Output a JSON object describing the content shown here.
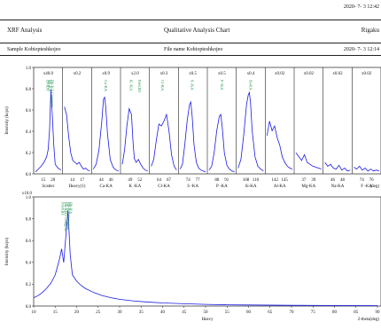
{
  "header": {
    "date_top": "2020- 7- 3 12:42",
    "left_title": "XRF Analysis",
    "center_title": "Qualitative Analysis Chart",
    "right_title": "Rigaku",
    "sample": "Sample Kobiopteshkojeo",
    "file": "File name Kobiopteshkojeo",
    "date_row": "2020- 7- 3 12:14"
  },
  "chart_data": [
    {
      "type": "line",
      "ylabel": "Intensity (kcps)",
      "ylim": [
        0,
        1.0
      ],
      "yticks": [
        "0.0",
        "0.2",
        "0.4",
        "0.6",
        "0.8",
        "1.0"
      ],
      "color": "#1a1ae6",
      "segments": [
        {
          "scale": "x40.0",
          "label": "Scatter",
          "ticks": [
            "15",
            "20"
          ],
          "xrange": [
            13,
            22
          ],
          "x": [
            13,
            14,
            15,
            16,
            17,
            17.5,
            18,
            18.5,
            19,
            19.5,
            20,
            21,
            22
          ],
          "y": [
            0.02,
            0.05,
            0.08,
            0.12,
            0.18,
            0.25,
            0.45,
            0.88,
            0.6,
            0.3,
            0.1,
            0.06,
            0.04
          ]
        },
        {
          "scale": "x0.2",
          "label": "Heavy(1)",
          "ticks": [
            "14",
            "17"
          ],
          "xrange": [
            12,
            18
          ],
          "x": [
            12,
            12.5,
            13,
            13.5,
            14,
            14.5,
            15,
            15.5,
            16,
            16.5,
            17,
            17.5,
            18
          ],
          "y": [
            0.7,
            0.62,
            0.4,
            0.22,
            0.14,
            0.12,
            0.1,
            0.12,
            0.08,
            0.05,
            0.06,
            0.04,
            0.03
          ]
        },
        {
          "scale": "x0.9",
          "label": "Ca-KA",
          "ticks": [
            "44",
            "46"
          ],
          "xrange": [
            43,
            47.5
          ],
          "x": [
            43,
            43.5,
            44,
            44.5,
            44.8,
            45,
            45.2,
            45.5,
            46,
            46.5,
            47,
            47.5
          ],
          "y": [
            0.05,
            0.1,
            0.25,
            0.55,
            0.78,
            0.8,
            0.7,
            0.42,
            0.15,
            0.07,
            0.04,
            0.03
          ]
        },
        {
          "scale": "x2.0",
          "label": "K -KA",
          "ticks": [
            "49",
            "52"
          ],
          "xrange": [
            48,
            53.5
          ],
          "x": [
            48,
            48.5,
            49,
            49.5,
            50,
            50.3,
            50.6,
            51,
            51.5,
            52,
            52.5,
            53,
            53.5
          ],
          "y": [
            0.1,
            0.25,
            0.5,
            0.68,
            0.62,
            0.35,
            0.16,
            0.12,
            0.15,
            0.1,
            0.06,
            0.04,
            0.03
          ]
        },
        {
          "scale": "x0.3",
          "label": "Cl-KA",
          "ticks": [
            "64",
            "67"
          ],
          "xrange": [
            63,
            68
          ],
          "x": [
            63,
            63.5,
            64,
            64.5,
            65,
            65.5,
            66,
            66.5,
            67,
            67.5,
            68
          ],
          "y": [
            0.08,
            0.15,
            0.35,
            0.52,
            0.5,
            0.55,
            0.62,
            0.45,
            0.2,
            0.08,
            0.04
          ]
        },
        {
          "scale": "x0.5",
          "label": "S -KA",
          "ticks": [
            "74",
            "77"
          ],
          "xrange": [
            73,
            78.5
          ],
          "x": [
            73,
            73.5,
            74,
            74.5,
            75,
            75.3,
            75.6,
            76,
            76.5,
            77,
            77.5,
            78,
            78.5
          ],
          "y": [
            0.05,
            0.1,
            0.3,
            0.55,
            0.72,
            0.75,
            0.6,
            0.3,
            0.12,
            0.06,
            0.04,
            0.03,
            0.02
          ]
        },
        {
          "scale": "x0.5",
          "label": "P -KA",
          "ticks": [
            "88",
            "91"
          ],
          "xrange": [
            87,
            92
          ],
          "x": [
            87,
            87.5,
            88,
            88.5,
            89,
            89.3,
            89.6,
            90,
            90.5,
            91,
            91.5,
            92
          ],
          "y": [
            0.04,
            0.08,
            0.22,
            0.45,
            0.6,
            0.62,
            0.48,
            0.22,
            0.09,
            0.05,
            0.03,
            0.02
          ]
        },
        {
          "scale": "x0.4",
          "label": "Si-KA",
          "ticks": [
            "108",
            "110"
          ],
          "xrange": [
            107,
            111.5
          ],
          "x": [
            107,
            107.5,
            108,
            108.5,
            108.8,
            109,
            109.2,
            109.5,
            110,
            110.5,
            111,
            111.5
          ],
          "y": [
            0.06,
            0.15,
            0.4,
            0.72,
            0.82,
            0.85,
            0.75,
            0.45,
            0.18,
            0.08,
            0.05,
            0.03
          ]
        },
        {
          "scale": "x0.02",
          "label": "Al-KA",
          "ticks": [
            "142",
            "145"
          ],
          "xrange": [
            141,
            146
          ],
          "x": [
            141,
            141.5,
            142,
            142.5,
            143,
            143.5,
            144,
            144.5,
            145,
            145.5,
            146
          ],
          "y": [
            0.4,
            0.55,
            0.45,
            0.5,
            0.38,
            0.3,
            0.18,
            0.12,
            0.08,
            0.06,
            0.05
          ]
        },
        {
          "scale": "x0.02",
          "label": "Mg-KA",
          "ticks": [
            "37",
            "39"
          ],
          "xrange": [
            36,
            40.5
          ],
          "x": [
            36,
            36.5,
            37,
            37.5,
            38,
            38.5,
            39,
            39.5,
            40,
            40.5
          ],
          "y": [
            0.22,
            0.18,
            0.14,
            0.2,
            0.12,
            0.1,
            0.08,
            0.07,
            0.06,
            0.05
          ]
        },
        {
          "scale": "x0.02",
          "label": "Na-KA",
          "ticks": [
            "46",
            "48"
          ],
          "xrange": [
            45,
            49.5
          ],
          "x": [
            45,
            45.5,
            46,
            46.5,
            47,
            47.5,
            48,
            48.5,
            49,
            49.5
          ],
          "y": [
            0.12,
            0.08,
            0.1,
            0.06,
            0.05,
            0.09,
            0.04,
            0.06,
            0.03,
            0.04
          ]
        },
        {
          "scale": "x0.02",
          "label": "F -KA",
          "ticks": [
            "74",
            "76"
          ],
          "xrange": [
            73,
            77.5
          ],
          "x": [
            73,
            73.5,
            74,
            74.5,
            75,
            75.5,
            76,
            76.5,
            77,
            77.5
          ],
          "y": [
            0.07,
            0.05,
            0.08,
            0.04,
            0.06,
            0.03,
            0.05,
            0.03,
            0.04,
            0.03
          ]
        }
      ],
      "x_unit": "(deg)",
      "annotations": [
        {
          "seg": 0,
          "x": 18.5,
          "text": "Rh-KA Compton"
        },
        {
          "seg": 0,
          "x": 17.6,
          "text": "Rh-KA"
        },
        {
          "seg": 0,
          "x": 17.0,
          "text": "Zr-KA"
        },
        {
          "seg": 2,
          "x": 45.0,
          "text": "Ca-KA"
        },
        {
          "seg": 3,
          "x": 49.6,
          "text": "K -KA"
        },
        {
          "seg": 3,
          "x": 51.5,
          "text": "Pd-LB1"
        },
        {
          "seg": 4,
          "x": 65.0,
          "text": "Cl-KA"
        },
        {
          "seg": 5,
          "x": 75.3,
          "text": "S -KA"
        },
        {
          "seg": 6,
          "x": 89.3,
          "text": "P -KA"
        },
        {
          "seg": 7,
          "x": 109.0,
          "text": "Si-KA"
        }
      ]
    },
    {
      "type": "line",
      "scale": "x10.0",
      "ylabel": "Intensity (kcps)",
      "xlabel": "Heavy",
      "x_unit": "2-theta(deg)",
      "xlim": [
        10,
        90
      ],
      "ylim": [
        0,
        1.0
      ],
      "xticks": [
        "10",
        "15",
        "20",
        "25",
        "30",
        "35",
        "40",
        "45",
        "50",
        "55",
        "60",
        "65",
        "70",
        "75",
        "80",
        "85",
        "90"
      ],
      "yticks": [
        "0.0",
        "0.2",
        "0.4",
        "0.6",
        "0.8",
        "1.0"
      ],
      "color": "#1a1ae6",
      "x": [
        10,
        11,
        12,
        13,
        14,
        15,
        16,
        16.5,
        17,
        17.5,
        18,
        18.5,
        19,
        20,
        21,
        22,
        24,
        26,
        28,
        30,
        33,
        36,
        40,
        45,
        50,
        55,
        60,
        70,
        80,
        90
      ],
      "y": [
        0.08,
        0.1,
        0.13,
        0.17,
        0.22,
        0.3,
        0.45,
        0.55,
        0.42,
        0.68,
        0.92,
        0.5,
        0.3,
        0.24,
        0.2,
        0.17,
        0.13,
        0.1,
        0.08,
        0.065,
        0.05,
        0.04,
        0.03,
        0.022,
        0.016,
        0.012,
        0.01,
        0.007,
        0.005,
        0.004
      ],
      "annotations": [
        {
          "x": 16.5,
          "text": "Pd-KB1"
        },
        {
          "x": 17.2,
          "text": "Rh-KB1 Compton"
        },
        {
          "x": 17.8,
          "text": "Rh-KA Compton"
        },
        {
          "x": 18.3,
          "text": "Rh-KA"
        }
      ]
    }
  ]
}
